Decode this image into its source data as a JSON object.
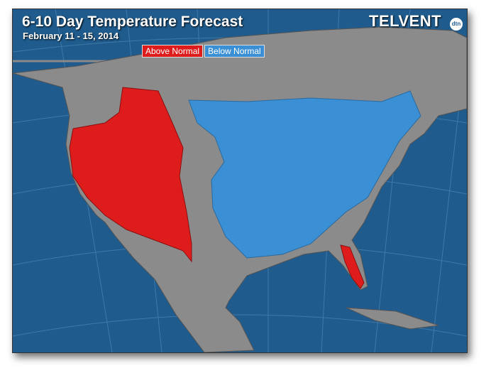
{
  "header": {
    "title": "6-10 Day Temperature Forecast",
    "subtitle": "February 11 - 15, 2014"
  },
  "legend": {
    "items": [
      {
        "label": "Above Normal",
        "color": "#de1c1c"
      },
      {
        "label": "Below Normal",
        "color": "#3b8fd4"
      }
    ]
  },
  "logo": {
    "name": "TELVENT",
    "badge": "dtn"
  }
}
